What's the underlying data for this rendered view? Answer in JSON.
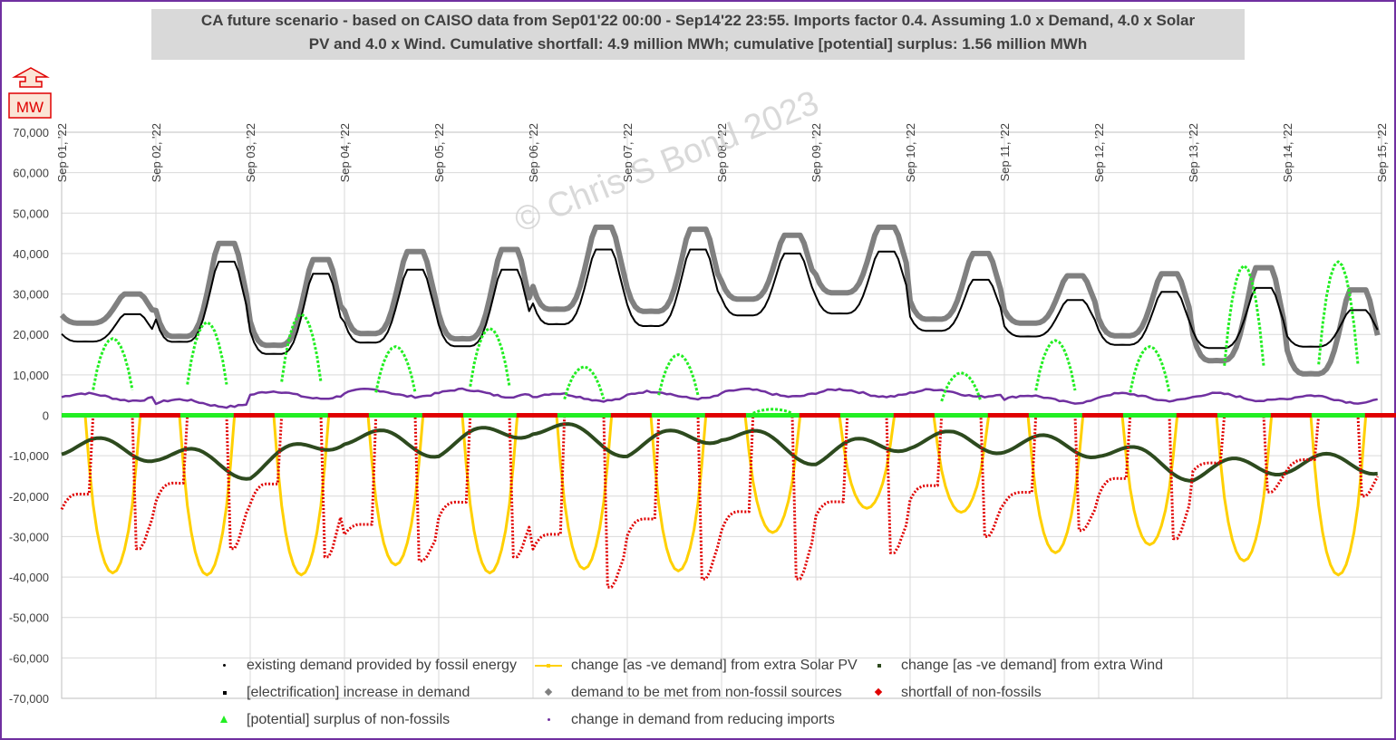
{
  "title": {
    "line1": "CA future scenario - based on CAISO data from Sep01'22 00:00 - Sep14'22 23:55. Imports factor 0.4.  Assuming 1.0 x Demand, 4.0 x Solar",
    "line2": "PV and 4.0 x Wind.  Cumulative shortfall: 4.9 million MWh; cumulative [potential] surplus: 1.56 million MWh"
  },
  "unit_label": "MW",
  "watermark": "© Chris S Bond  2023",
  "colors": {
    "fossil": "#000000",
    "solar": "#ffd000",
    "wind": "#2d4a1e",
    "electrification": "#000000",
    "non_fossil_demand": "#808080",
    "shortfall": "#e00000",
    "surplus": "#22ee22",
    "imports": "#7030a0",
    "frame": "#7030a0",
    "grid": "#d9d9d9"
  },
  "chart_data": {
    "type": "scatter",
    "x_axis": {
      "range": [
        "Sep 01, '22",
        "Sep 15, '22"
      ],
      "tick_labels": [
        "Sep 01, '22",
        "Sep 02, '22",
        "Sep 03, '22",
        "Sep 04, '22",
        "Sep 05, '22",
        "Sep 06, '22",
        "Sep 07, '22",
        "Sep 08, '22",
        "Sep 09, '22",
        "Sep 10, '22",
        "Sep 11, '22",
        "Sep 12, '22",
        "Sep 13, '22",
        "Sep 14, '22",
        "Sep 15, '22"
      ],
      "position": "top"
    },
    "y_axis": {
      "range": [
        -70000,
        70000
      ],
      "tick_labels": [
        "70,000",
        "60,000",
        "50,000",
        "40,000",
        "30,000",
        "20,000",
        "10,000",
        "0",
        "-10,000",
        "-20,000",
        "-30,000",
        "-40,000",
        "-50,000",
        "-60,000",
        "-70,000"
      ],
      "grid": true
    },
    "legend_position": "bottom",
    "series": [
      {
        "key": "fossil",
        "name": "existing demand provided by fossil energy",
        "marker": "dot",
        "daily_min": [
          17500,
          16000,
          13000,
          16000,
          15000,
          20500,
          20000,
          23000,
          23500,
          19500,
          18500,
          16000,
          15000,
          16000
        ],
        "daily_max": [
          25000,
          38000,
          35000,
          36000,
          36000,
          41000,
          41000,
          40000,
          40500,
          33500,
          28500,
          30500,
          31500,
          26000
        ],
        "end_value": 18500
      },
      {
        "key": "non_fossil_demand",
        "name": "demand to be met from non-fossil sources",
        "marker": "diamond",
        "daily_min": [
          22000,
          17000,
          15000,
          18000,
          16500,
          24000,
          23500,
          27000,
          28500,
          22000,
          21500,
          18000,
          11000,
          8000
        ],
        "daily_max": [
          30000,
          42500,
          38500,
          40500,
          41000,
          46500,
          46000,
          44500,
          46500,
          40000,
          34500,
          35000,
          36500,
          31000
        ],
        "end_value": 22000
      },
      {
        "key": "solar",
        "name": "change [as -ve demand] from extra Solar PV",
        "marker": "line",
        "daily_min": [
          -39000,
          -39500,
          -39500,
          -37000,
          -39000,
          -38000,
          -38500,
          -29000,
          -23000,
          -24000,
          -34000,
          -32000,
          -36000,
          -39500
        ]
      },
      {
        "key": "wind",
        "name": "change [as -ve demand] from extra Wind",
        "marker": "square",
        "daily_values": [
          -7500,
          -9000,
          -13500,
          -5000,
          -8000,
          -2500,
          -8000,
          -4000,
          -10000,
          -6000,
          -7000,
          -8000,
          -14000,
          -12000
        ],
        "daily_max": [
          -500,
          -3000,
          -2000,
          -1000,
          -1500,
          -500,
          -800,
          -500,
          -5000,
          -4000,
          -4000,
          -1500,
          -6000,
          -3000
        ],
        "end_value": -10500
      },
      {
        "key": "shortfall",
        "name": "shortfall of non-fossils",
        "marker": "diamond",
        "daily_min": [
          -33000,
          -33000,
          -35000,
          -36000,
          -35000,
          -42500,
          -40500,
          -40500,
          -34000,
          -30000,
          -28500,
          -30500,
          -19000,
          -20000
        ],
        "daily_max": [
          -18000,
          -15000,
          -15000,
          -26000,
          -20000,
          -28000,
          -24000,
          -22000,
          -20000,
          -16000,
          -18000,
          -14000,
          -11000,
          -10000
        ],
        "end_value": -11000
      },
      {
        "key": "surplus",
        "name": "[potential] surplus of non-fossils",
        "marker": "triangle",
        "daily_max": [
          19000,
          23000,
          25000,
          17000,
          21500,
          12000,
          15000,
          1500,
          0,
          10500,
          18500,
          17000,
          37000,
          38000
        ]
      },
      {
        "key": "electrification",
        "name": "[electrification] increase in demand",
        "marker": "square",
        "value": 0
      },
      {
        "key": "imports",
        "name": "change in demand from reducing imports",
        "marker": "dot",
        "daily_values": [
          4500,
          3000,
          5000,
          5500,
          5500,
          4500,
          5000,
          5500,
          5500,
          5500,
          4000,
          4500,
          4500,
          4000
        ],
        "end_value": 4000
      }
    ]
  }
}
